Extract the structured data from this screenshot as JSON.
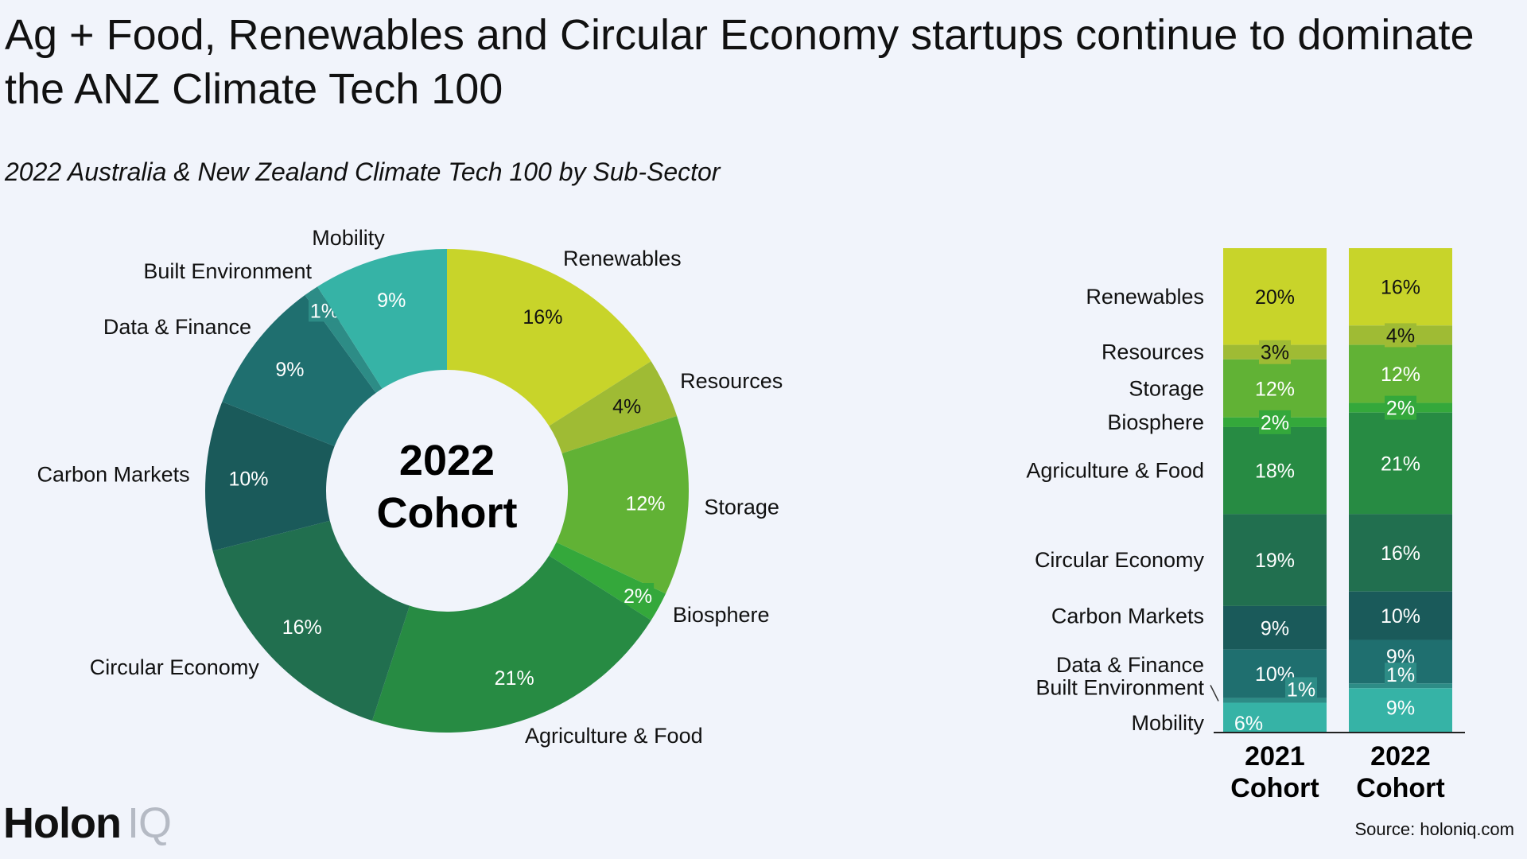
{
  "title": "Ag + Food, Renewables and Circular Economy startups continue to dominate the ANZ Climate Tech 100",
  "subtitle": "2022 Australia & New Zealand Climate Tech 100 by Sub-Sector",
  "logo": {
    "main": "Holon",
    "accent": "IQ"
  },
  "source": "Source: holoniq.com",
  "chart_data": [
    {
      "type": "pie",
      "variant": "donut",
      "center_label": [
        "2022",
        "Cohort"
      ],
      "categories": [
        "Renewables",
        "Resources",
        "Storage",
        "Biosphere",
        "Agriculture & Food",
        "Circular Economy",
        "Carbon Markets",
        "Data & Finance",
        "Built Environment",
        "Mobility"
      ],
      "values": [
        16,
        4,
        12,
        2,
        21,
        16,
        10,
        9,
        1,
        9
      ],
      "value_labels": [
        "16%",
        "4%",
        "12%",
        "2%",
        "21%",
        "16%",
        "10%",
        "9%",
        "1%",
        "9%"
      ],
      "colors": [
        "#c8d42a",
        "#9fbb34",
        "#61b235",
        "#34a83b",
        "#278b43",
        "#216f4f",
        "#1a5a5a",
        "#1f6f6f",
        "#2d8c86",
        "#36b3a6"
      ]
    },
    {
      "type": "bar",
      "variant": "stacked-100",
      "categories": [
        "2021 Cohort",
        "2022 Cohort"
      ],
      "category_lines": [
        [
          "2021",
          "Cohort"
        ],
        [
          "2022",
          "Cohort"
        ]
      ],
      "series": [
        {
          "name": "Renewables",
          "values": [
            20,
            16
          ],
          "labels": [
            "20%",
            "16%"
          ],
          "color": "#c8d42a"
        },
        {
          "name": "Resources",
          "values": [
            3,
            4
          ],
          "labels": [
            "3%",
            "4%"
          ],
          "color": "#9fbb34"
        },
        {
          "name": "Storage",
          "values": [
            12,
            12
          ],
          "labels": [
            "12%",
            "12%"
          ],
          "color": "#61b235"
        },
        {
          "name": "Biosphere",
          "values": [
            2,
            2
          ],
          "labels": [
            "2%",
            "2%"
          ],
          "color": "#34a83b"
        },
        {
          "name": "Agriculture & Food",
          "values": [
            18,
            21
          ],
          "labels": [
            "18%",
            "21%"
          ],
          "color": "#278b43"
        },
        {
          "name": "Circular Economy",
          "values": [
            19,
            16
          ],
          "labels": [
            "19%",
            "16%"
          ],
          "color": "#216f4f"
        },
        {
          "name": "Carbon Markets",
          "values": [
            9,
            10
          ],
          "labels": [
            "9%",
            "10%"
          ],
          "color": "#1a5a5a"
        },
        {
          "name": "Data & Finance",
          "values": [
            10,
            9
          ],
          "labels": [
            "10%",
            "9%"
          ],
          "color": "#1f6f6f"
        },
        {
          "name": "Built Environment",
          "values": [
            1,
            1
          ],
          "labels": [
            "1%",
            "1%"
          ],
          "color": "#2d8c86"
        },
        {
          "name": "Mobility",
          "values": [
            6,
            9
          ],
          "labels": [
            "6%",
            "9%"
          ],
          "color": "#36b3a6"
        }
      ]
    }
  ]
}
